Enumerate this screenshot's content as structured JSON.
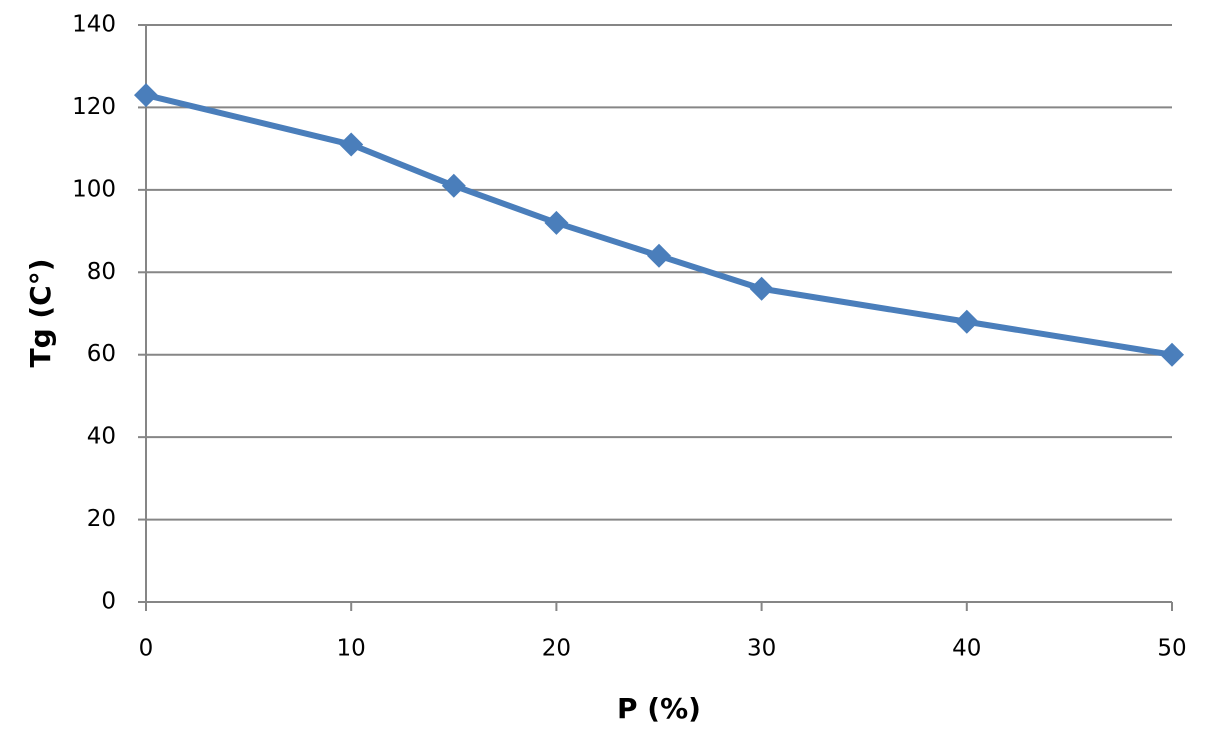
{
  "chart_data": {
    "type": "line",
    "xlabel": "P (%)",
    "ylabel": "Tg (C°)",
    "x": [
      0,
      10,
      15,
      20,
      25,
      30,
      40,
      50
    ],
    "values": [
      123,
      111,
      101,
      92,
      84,
      76,
      68,
      60
    ],
    "color": "#4a7ebb",
    "xlim": [
      0,
      50
    ],
    "ylim": [
      0,
      140
    ],
    "xticks": [
      0,
      10,
      20,
      30,
      40,
      50
    ],
    "yticks": [
      0,
      20,
      40,
      60,
      80,
      100,
      120,
      140
    ],
    "grid": true
  }
}
